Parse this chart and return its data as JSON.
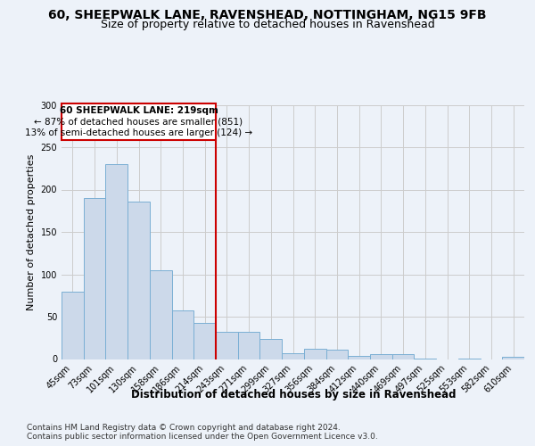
{
  "title1": "60, SHEEPWALK LANE, RAVENSHEAD, NOTTINGHAM, NG15 9FB",
  "title2": "Size of property relative to detached houses in Ravenshead",
  "xlabel": "Distribution of detached houses by size in Ravenshead",
  "ylabel": "Number of detached properties",
  "footnote1": "Contains HM Land Registry data © Crown copyright and database right 2024.",
  "footnote2": "Contains public sector information licensed under the Open Government Licence v3.0.",
  "annotation_line1": "60 SHEEPWALK LANE: 219sqm",
  "annotation_line2": "← 87% of detached houses are smaller (851)",
  "annotation_line3": "13% of semi-detached houses are larger (124) →",
  "bar_labels": [
    "45sqm",
    "73sqm",
    "101sqm",
    "130sqm",
    "158sqm",
    "186sqm",
    "214sqm",
    "243sqm",
    "271sqm",
    "299sqm",
    "327sqm",
    "356sqm",
    "384sqm",
    "412sqm",
    "440sqm",
    "469sqm",
    "497sqm",
    "525sqm",
    "553sqm",
    "582sqm",
    "610sqm"
  ],
  "bar_values": [
    79,
    190,
    230,
    186,
    105,
    57,
    43,
    32,
    32,
    24,
    7,
    12,
    11,
    4,
    6,
    6,
    1,
    0,
    1,
    0,
    3
  ],
  "bar_color": "#ccd9ea",
  "bar_edge_color": "#7aafd4",
  "vline_color": "#cc0000",
  "vline_x_index": 6,
  "annotation_box_color": "#ffffff",
  "annotation_box_edge": "#cc0000",
  "grid_color": "#cccccc",
  "background_color": "#edf2f9",
  "ylim": [
    0,
    300
  ],
  "yticks": [
    0,
    50,
    100,
    150,
    200,
    250,
    300
  ],
  "title1_fontsize": 10,
  "title2_fontsize": 9,
  "xlabel_fontsize": 8.5,
  "ylabel_fontsize": 8,
  "tick_fontsize": 7,
  "annotation_fontsize": 7.5,
  "footnote_fontsize": 6.5
}
